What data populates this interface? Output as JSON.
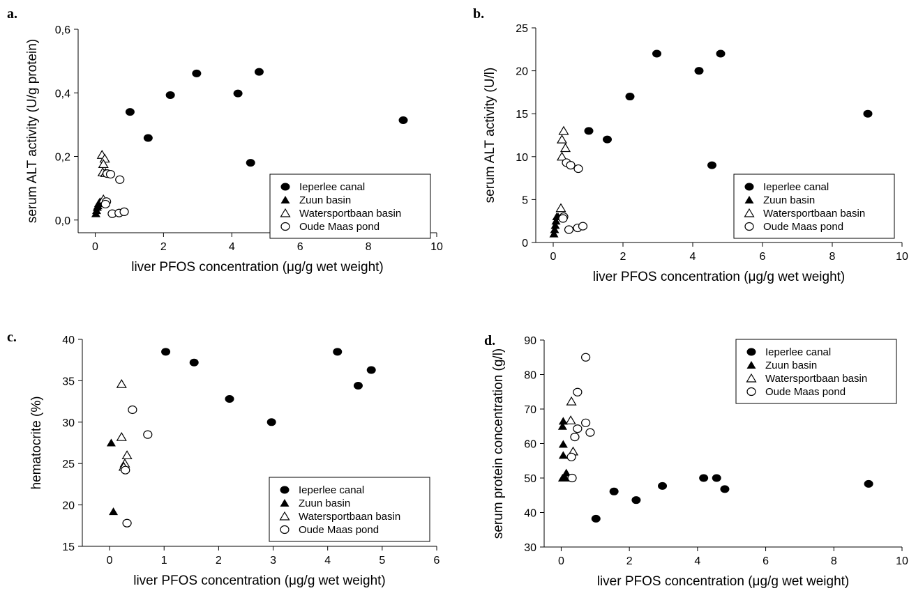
{
  "series_styles": {
    "Ieperlee canal": {
      "marker": "ellipse-filled",
      "color": "#000000"
    },
    "Zuun basin": {
      "marker": "triangle-filled",
      "color": "#000000"
    },
    "Watersportbaan basin": {
      "marker": "triangle-open",
      "color": "#000000"
    },
    "Oude Maas pond": {
      "marker": "circle-open",
      "color": "#000000"
    }
  },
  "chart_data": [
    {
      "panel": "a.",
      "type": "scatter",
      "xlabel": "liver PFOS concentration (μg/g wet weight)",
      "ylabel": "serum ALT activity (U/g protein)",
      "xlim": [
        -0.5,
        10
      ],
      "ylim": [
        -0.04,
        0.6
      ],
      "xticks": [
        0,
        2,
        4,
        6,
        8,
        10
      ],
      "xtick_labels": [
        "0",
        "2",
        "4",
        "6",
        "8",
        "10"
      ],
      "yticks": [
        0.0,
        0.2,
        0.4,
        0.6
      ],
      "ytick_labels": [
        "0,0",
        "0,2",
        "0,4",
        "0,6"
      ],
      "legend_position": "lower-right",
      "series": [
        {
          "name": "Ieperlee canal",
          "points": [
            [
              1.02,
              0.34
            ],
            [
              1.55,
              0.258
            ],
            [
              2.2,
              0.393
            ],
            [
              2.97,
              0.461
            ],
            [
              4.18,
              0.398
            ],
            [
              4.55,
              0.18
            ],
            [
              4.8,
              0.466
            ],
            [
              9.02,
              0.314
            ]
          ]
        },
        {
          "name": "Zuun basin",
          "points": [
            [
              0.02,
              0.02
            ],
            [
              0.04,
              0.03
            ],
            [
              0.06,
              0.04
            ],
            [
              0.08,
              0.045
            ],
            [
              0.1,
              0.052
            ],
            [
              0.14,
              0.058
            ]
          ]
        },
        {
          "name": "Watersportbaan basin",
          "points": [
            [
              0.2,
              0.205
            ],
            [
              0.28,
              0.193
            ],
            [
              0.24,
              0.176
            ],
            [
              0.22,
              0.15
            ],
            [
              0.3,
              0.148
            ],
            [
              0.24,
              0.065
            ]
          ]
        },
        {
          "name": "Oude Maas pond",
          "points": [
            [
              0.35,
              0.146
            ],
            [
              0.45,
              0.144
            ],
            [
              0.72,
              0.127
            ],
            [
              0.33,
              0.058
            ],
            [
              0.3,
              0.05
            ],
            [
              0.5,
              0.02
            ],
            [
              0.7,
              0.022
            ],
            [
              0.85,
              0.026
            ]
          ]
        }
      ]
    },
    {
      "panel": "b.",
      "type": "scatter",
      "xlabel": "liver PFOS concentration (μg/g wet weight)",
      "ylabel": "serum ALT activity (U/l)",
      "xlim": [
        -0.5,
        10
      ],
      "ylim": [
        0,
        25
      ],
      "xticks": [
        0,
        2,
        4,
        6,
        8,
        10
      ],
      "xtick_labels": [
        "0",
        "2",
        "4",
        "6",
        "8",
        "10"
      ],
      "yticks": [
        0,
        5,
        10,
        15,
        20,
        25
      ],
      "ytick_labels": [
        "0",
        "5",
        "10",
        "15",
        "20",
        "25"
      ],
      "legend_position": "lower-right",
      "series": [
        {
          "name": "Ieperlee canal",
          "points": [
            [
              1.02,
              13
            ],
            [
              1.55,
              12
            ],
            [
              2.2,
              17
            ],
            [
              2.97,
              22
            ],
            [
              4.18,
              20
            ],
            [
              4.55,
              9
            ],
            [
              4.8,
              22
            ],
            [
              9.02,
              15
            ]
          ]
        },
        {
          "name": "Zuun basin",
          "points": [
            [
              0.02,
              1
            ],
            [
              0.04,
              1.5
            ],
            [
              0.06,
              2
            ],
            [
              0.08,
              2.5
            ],
            [
              0.1,
              3
            ],
            [
              0.14,
              3
            ]
          ]
        },
        {
          "name": "Watersportbaan basin",
          "points": [
            [
              0.3,
              13
            ],
            [
              0.25,
              12
            ],
            [
              0.35,
              11
            ],
            [
              0.25,
              10
            ],
            [
              0.22,
              4
            ]
          ]
        },
        {
          "name": "Oude Maas pond",
          "points": [
            [
              0.38,
              9.3
            ],
            [
              0.5,
              9
            ],
            [
              0.72,
              8.6
            ],
            [
              0.3,
              3
            ],
            [
              0.28,
              2.8
            ],
            [
              0.45,
              1.5
            ],
            [
              0.7,
              1.7
            ],
            [
              0.85,
              1.9
            ]
          ]
        }
      ]
    },
    {
      "panel": "c.",
      "type": "scatter",
      "xlabel": "liver PFOS concentration (μg/g wet weight)",
      "ylabel": "hematocrite (%)",
      "xlim": [
        -0.5,
        6
      ],
      "ylim": [
        15,
        40
      ],
      "xticks": [
        0,
        1,
        2,
        3,
        4,
        5,
        6
      ],
      "xtick_labels": [
        "0",
        "1",
        "2",
        "3",
        "4",
        "5",
        "6"
      ],
      "yticks": [
        15,
        20,
        25,
        30,
        35,
        40
      ],
      "ytick_labels": [
        "15",
        "20",
        "25",
        "30",
        "35",
        "40"
      ],
      "legend_position": "lower-right",
      "series": [
        {
          "name": "Ieperlee canal",
          "points": [
            [
              1.03,
              38.5
            ],
            [
              1.55,
              37.2
            ],
            [
              2.2,
              32.8
            ],
            [
              2.97,
              30
            ],
            [
              4.18,
              38.5
            ],
            [
              4.56,
              34.4
            ],
            [
              4.8,
              36.3
            ]
          ]
        },
        {
          "name": "Zuun basin",
          "points": [
            [
              0.03,
              27.5
            ],
            [
              0.07,
              19.2
            ]
          ]
        },
        {
          "name": "Watersportbaan basin",
          "points": [
            [
              0.22,
              34.6
            ],
            [
              0.22,
              28.2
            ],
            [
              0.32,
              26
            ],
            [
              0.28,
              25
            ],
            [
              0.26,
              24.6
            ]
          ]
        },
        {
          "name": "Oude Maas pond",
          "points": [
            [
              0.42,
              31.5
            ],
            [
              0.7,
              28.5
            ],
            [
              0.29,
              24.2
            ],
            [
              0.32,
              17.8
            ]
          ]
        }
      ]
    },
    {
      "panel": "d.",
      "type": "scatter",
      "xlabel": "liver PFOS concentration (μg/g wet weight)",
      "ylabel": "serum protein concentration (g/l)",
      "xlim": [
        -0.5,
        10
      ],
      "ylim": [
        30,
        90
      ],
      "xticks": [
        0,
        2,
        4,
        6,
        8,
        10
      ],
      "xtick_labels": [
        "0",
        "2",
        "4",
        "6",
        "8",
        "10"
      ],
      "yticks": [
        30,
        40,
        50,
        60,
        70,
        80,
        90
      ],
      "ytick_labels": [
        "30",
        "40",
        "50",
        "60",
        "70",
        "80",
        "90"
      ],
      "legend_position": "top-right",
      "series": [
        {
          "name": "Ieperlee canal",
          "points": [
            [
              1.02,
              38.2
            ],
            [
              1.55,
              46.1
            ],
            [
              2.2,
              43.6
            ],
            [
              2.97,
              47.7
            ],
            [
              4.18,
              50
            ],
            [
              4.56,
              50
            ],
            [
              4.8,
              46.8
            ],
            [
              9.02,
              48.3
            ]
          ]
        },
        {
          "name": "Zuun basin",
          "points": [
            [
              0.06,
              66.5
            ],
            [
              0.04,
              65
            ],
            [
              0.06,
              59.8
            ],
            [
              0.06,
              56.6
            ],
            [
              0.15,
              51.5
            ],
            [
              0.04,
              50
            ],
            [
              0.12,
              50
            ]
          ]
        },
        {
          "name": "Watersportbaan basin",
          "points": [
            [
              0.3,
              72.2
            ],
            [
              0.28,
              66.7
            ],
            [
              0.35,
              57.7
            ]
          ]
        },
        {
          "name": "Oude Maas pond",
          "points": [
            [
              0.72,
              85
            ],
            [
              0.48,
              74.9
            ],
            [
              0.72,
              66
            ],
            [
              0.48,
              64.3
            ],
            [
              0.85,
              63.2
            ],
            [
              0.4,
              61.9
            ],
            [
              0.3,
              56.1
            ],
            [
              0.32,
              50
            ]
          ]
        }
      ]
    }
  ]
}
